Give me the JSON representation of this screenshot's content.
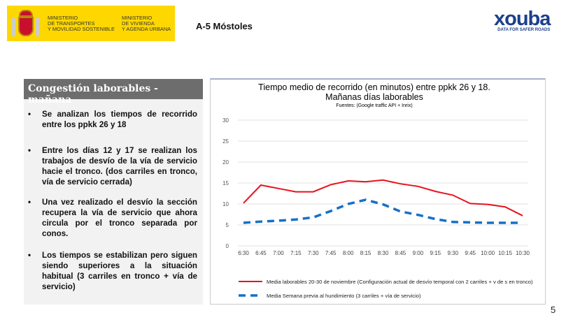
{
  "header": {
    "ministry1": [
      "MINISTERIO",
      "DE TRANSPORTES",
      "Y MOVILIDAD SOSTENIBLE"
    ],
    "ministry2": [
      "MINISTERIO",
      "DE VIVIENDA",
      "Y AGENDA URBANA"
    ],
    "title": "A-5 Móstoles",
    "logo_word": "xouba",
    "logo_tagline": "DATA FOR SAFER ROADS"
  },
  "panel": {
    "heading": "Congestión laborables - mañana",
    "bullets": [
      "Se analizan los tiempos de recorrido entre los ppkk 26 y 18",
      "Entre los días 12 y 17 se realizan los trabajos de desvío de la vía de servicio hacie el tronco. (dos carriles en tronco, vía de servicio cerrada)",
      "Una vez realizado el desvío la sección recupera la vía de servicio que ahora circula por el tronco separada por conos.",
      "Los tiempos se estabilizan pero siguen siendo superiores a la situación habitual (3 carriles en tronco + vía de servicio)"
    ]
  },
  "page_number": "5",
  "chart_data": {
    "type": "line",
    "title": "Tiempo medio de recorrido (en minutos) entre ppkk 26 y 18.",
    "subtitle": "Mañanas días laborables",
    "source": "Fuentes: (Google traffic API + Inrix)",
    "categories": [
      "6:30",
      "6:45",
      "7:00",
      "7:15",
      "7:30",
      "7:45",
      "8:00",
      "8:15",
      "8:30",
      "8:45",
      "9:00",
      "9:15",
      "9:30",
      "9:45",
      "10:00",
      "10:15",
      "10:30"
    ],
    "ylim": [
      0,
      30
    ],
    "yticks": [
      0,
      5,
      10,
      15,
      20,
      25,
      30
    ],
    "grid": true,
    "legend": "bottom",
    "series": [
      {
        "name": "Media laborables 20-30 de noviembre (Configuración actual de desvío temporal con 2 carriles + v de s en tronco)",
        "color": "#e8111f",
        "style": "solid",
        "values": [
          10.2,
          14.5,
          13.7,
          12.9,
          12.9,
          14.6,
          15.5,
          15.3,
          15.7,
          14.8,
          14.2,
          13.0,
          12.1,
          10.1,
          9.9,
          9.3,
          7.2
        ]
      },
      {
        "name": "Media Semana previa al hundimiento (3 carriles + vía de servicio)",
        "color": "#1570c8",
        "style": "dashed",
        "values": [
          5.5,
          5.8,
          6.0,
          6.3,
          6.8,
          8.3,
          10.0,
          11.0,
          9.9,
          8.2,
          7.4,
          6.4,
          5.7,
          5.6,
          5.5,
          5.5,
          5.5
        ]
      }
    ]
  }
}
